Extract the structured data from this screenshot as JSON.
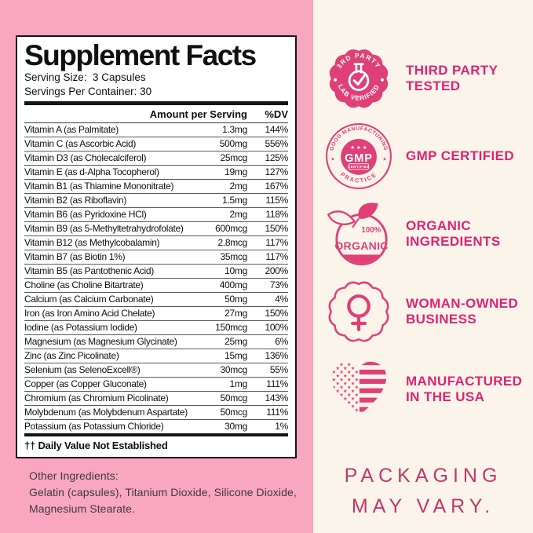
{
  "colors": {
    "left_background": "#F9A6C1",
    "right_background": "#FBF4EB",
    "badge_pink": "#DE4077",
    "badge_label_pink": "#DE2470",
    "packaging_text_pink": "#C33768"
  },
  "supplement_facts": {
    "title": "Supplement Facts",
    "serving_size": "Serving Size:  3 Capsules",
    "servings_per_container": "Servings Per Container: 30",
    "columns": {
      "amount": "Amount per Serving",
      "dv": "%DV"
    },
    "rows": [
      {
        "name": "Vitamin A (as Palmitate)",
        "amount": "1.3mg",
        "dv": "144%"
      },
      {
        "name": "Vitamin C (as Ascorbic Acid)",
        "amount": "500mg",
        "dv": "556%"
      },
      {
        "name": "Vitamin D3 (as Cholecalciferol)",
        "amount": "25mcg",
        "dv": "125%"
      },
      {
        "name": "Vitamin E (as d-Alpha Tocopherol)",
        "amount": "19mg",
        "dv": "127%"
      },
      {
        "name": "Vitamin B1 (as Thiamine Mononitrate)",
        "amount": "2mg",
        "dv": "167%"
      },
      {
        "name": "Vitamin B2 (as Riboflavin)",
        "amount": "1.5mg",
        "dv": "115%"
      },
      {
        "name": "Vitamin B6 (as Pyridoxine HCl)",
        "amount": "2mg",
        "dv": "118%"
      },
      {
        "name": "Vitamin B9 (as 5-Methyltetrahydrofolate)",
        "amount": "600mcg",
        "dv": "150%"
      },
      {
        "name": "Vitamin B12 (as Methylcobalamin)",
        "amount": "2.8mcg",
        "dv": "117%"
      },
      {
        "name": "Vitamin B7 (as Biotin 1%)",
        "amount": "35mcg",
        "dv": "117%"
      },
      {
        "name": "Vitamin B5 (as Pantothenic Acid)",
        "amount": "10mg",
        "dv": "200%"
      },
      {
        "name": "Choline (as Choline Bitartrate)",
        "amount": "400mg",
        "dv": "73%"
      },
      {
        "name": "Calcium (as Calcium Carbonate)",
        "amount": "50mg",
        "dv": "4%"
      },
      {
        "name": "Iron (as Iron Amino Acid Chelate)",
        "amount": "27mg",
        "dv": "150%"
      },
      {
        "name": "Iodine (as Potassium Iodide)",
        "amount": "150mcg",
        "dv": "100%"
      },
      {
        "name": "Magnesium (as Magnesium Glycinate)",
        "amount": "25mg",
        "dv": "6%"
      },
      {
        "name": "Zinc (as Zinc Picolinate)",
        "amount": "15mg",
        "dv": "136%"
      },
      {
        "name": "Selenium (as SelenoExcell®)",
        "amount": "30mcg",
        "dv": "55%"
      },
      {
        "name": "Copper (as Copper Gluconate)",
        "amount": "1mg",
        "dv": "111%"
      },
      {
        "name": "Chromium (as Chromium Picolinate)",
        "amount": "50mcg",
        "dv": "143%"
      },
      {
        "name": "Molybdenum (as Molybdenum Aspartate)",
        "amount": "50mcg",
        "dv": "111%"
      },
      {
        "name": "Potassium (as Potassium Chloride)",
        "amount": "30mg",
        "dv": "1%"
      }
    ],
    "footnote": "†† Daily Value Not Established"
  },
  "other_ingredients": {
    "heading": "Other Ingredients:",
    "body": "Gelatin (capsules), Titanium Dioxide, Silicone Dioxide, Magnesium Stearate."
  },
  "badges": [
    {
      "name": "third-party-tested",
      "seal_top": "3RD PARTY",
      "seal_bottom": "LAB VERIFIED",
      "label_line1": "THIRD PARTY",
      "label_line2": "TESTED"
    },
    {
      "name": "gmp-certified",
      "seal_top": "GOOD MANUFACTURING",
      "seal_bottom": "PRACTICE",
      "seal_stars": "★ ★ ★",
      "seal_main": "GMP",
      "seal_sub": "CERTIFIED",
      "seal_side": "★",
      "label_line1": "GMP CERTIFIED",
      "label_line2": ""
    },
    {
      "name": "organic-ingredients",
      "seal_percent": "100%",
      "seal_word": "ORGANIC",
      "label_line1": "ORGANIC",
      "label_line2": "INGREDIENTS"
    },
    {
      "name": "woman-owned-business",
      "label_line1": "WOMAN-OWNED",
      "label_line2": "BUSINESS"
    },
    {
      "name": "manufactured-in-usa",
      "label_line1": "MANUFACTURED",
      "label_line2": "IN THE USA"
    }
  ],
  "packaging_note": {
    "line1": "PACKAGING",
    "line2": "MAY VARY."
  }
}
